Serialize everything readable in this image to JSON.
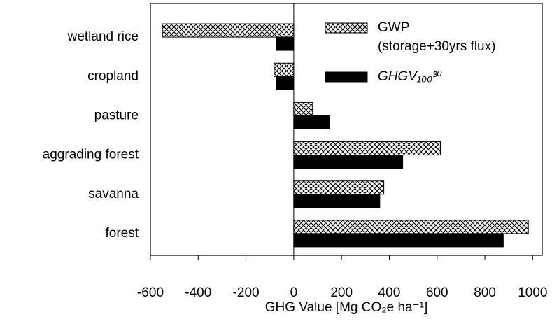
{
  "chart_data": {
    "type": "hbar",
    "categories": [
      "wetland rice",
      "cropland",
      "pasture",
      "aggrading forest",
      "savanna",
      "forest"
    ],
    "series": [
      {
        "name": "GWP (storage+30yrs flux)",
        "color": "#000000",
        "pattern": "crosshatch",
        "values": [
          -550,
          -82,
          79,
          614,
          377,
          982
        ]
      },
      {
        "name": "GHGV₁₀₀³⁰",
        "color": "#000000",
        "values": [
          -73,
          -73,
          149,
          456,
          360,
          877
        ]
      }
    ],
    "xlabel": "GHG Value [Mg CO₂e ha⁻¹]",
    "xlim": [
      -600,
      1040
    ],
    "xticks": [
      -600,
      -400,
      -200,
      0,
      200,
      400,
      600,
      800,
      1000
    ],
    "legend": "upper right"
  }
}
